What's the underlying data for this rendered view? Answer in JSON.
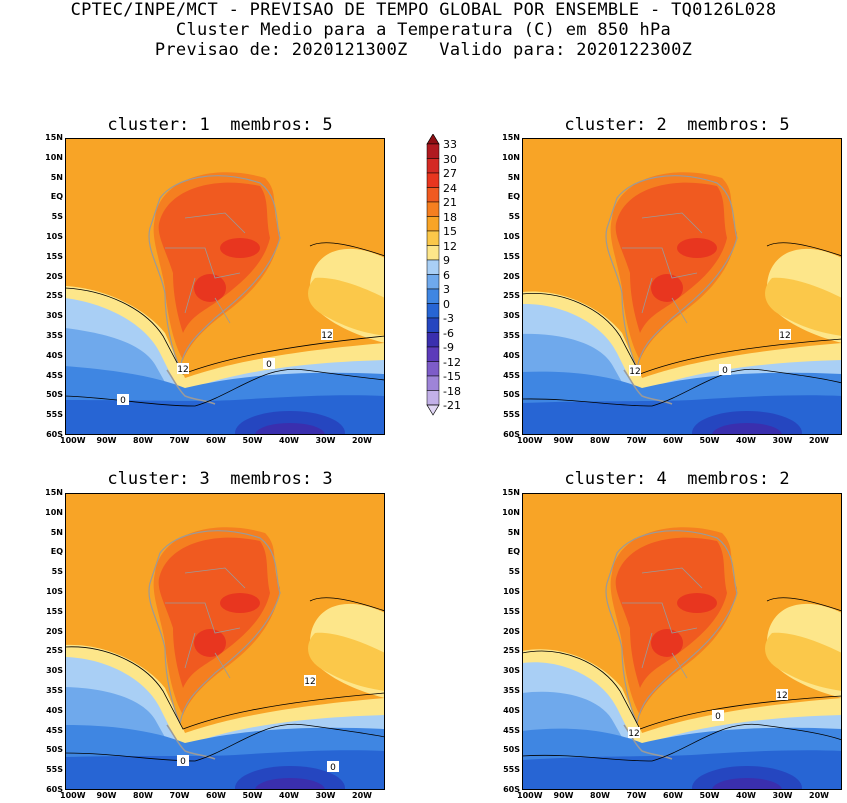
{
  "header": {
    "line1": "CPTEC/INPE/MCT - PREVISAO DE TEMPO GLOBAL POR ENSEMBLE - TQ0126L028",
    "line2": "Cluster Medio para a Temperatura (C) em 850 hPa",
    "line3": "Previsao de: 2020121300Z   Valido para: 2020122300Z"
  },
  "panels": [
    {
      "title": "cluster: 1  membros: 5",
      "contour_labels": [
        "12",
        "12",
        "0",
        "0"
      ]
    },
    {
      "title": "cluster: 2  membros: 5",
      "contour_labels": [
        "12",
        "12",
        "0"
      ]
    },
    {
      "title": "cluster: 3  membros: 3",
      "contour_labels": [
        "12",
        "0",
        "0"
      ]
    },
    {
      "title": "cluster: 4  membros: 2",
      "contour_labels": [
        "12",
        "12",
        "0"
      ]
    }
  ],
  "axes": {
    "lat_labels": [
      "15N",
      "10N",
      "5N",
      "EQ",
      "5S",
      "10S",
      "15S",
      "20S",
      "25S",
      "30S",
      "35S",
      "40S",
      "45S",
      "50S",
      "55S",
      "60S"
    ],
    "lon_labels": [
      "100W",
      "90W",
      "80W",
      "70W",
      "60W",
      "50W",
      "40W",
      "30W",
      "20W"
    ]
  },
  "colorbar": {
    "labels": [
      "33",
      "30",
      "27",
      "24",
      "21",
      "18",
      "15",
      "12",
      "9",
      "6",
      "3",
      "0",
      "-3",
      "-6",
      "-9",
      "-12",
      "-15",
      "-18",
      "-21"
    ],
    "colors": [
      "#8f0f14",
      "#b01a20",
      "#d42a24",
      "#e8361f",
      "#f05a20",
      "#f57f20",
      "#f8a426",
      "#fbc84a",
      "#fde68a",
      "#a9cff5",
      "#6fa9ec",
      "#3f86e2",
      "#2765d4",
      "#2546c0",
      "#3a2fae",
      "#5c3bba",
      "#7d5cc8",
      "#9e84d8",
      "#c2b0e8",
      "#e0d6f4"
    ]
  }
}
